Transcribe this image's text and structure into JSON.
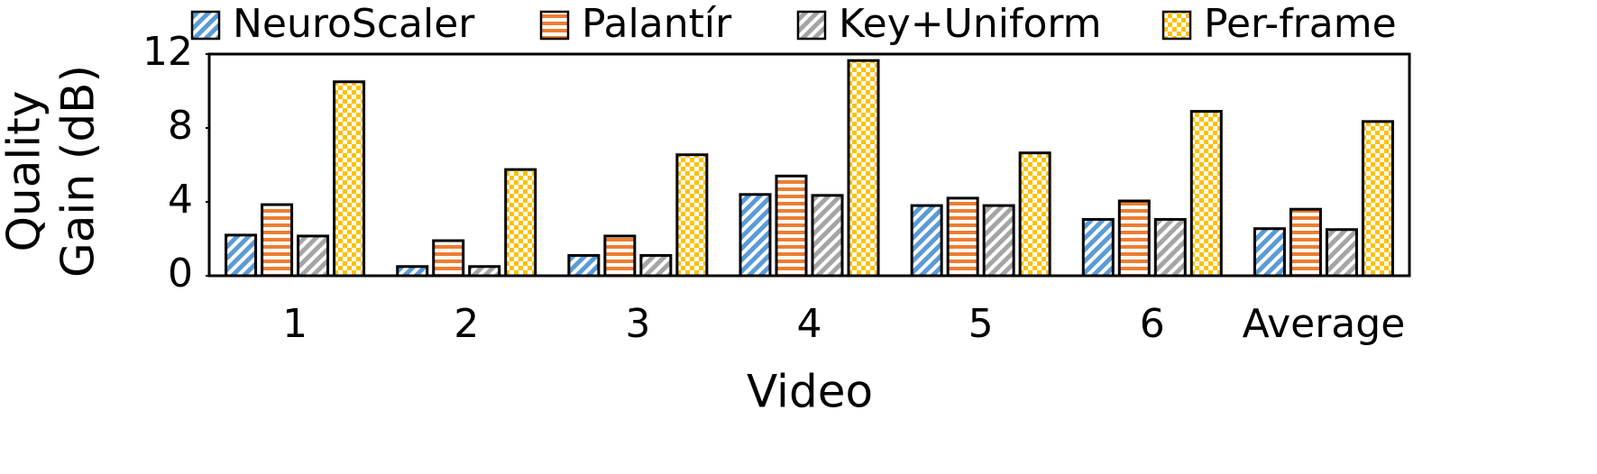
{
  "chart_data": {
    "type": "bar",
    "x_label": "Video",
    "y_label": [
      "Quality",
      "Gain (dB)"
    ],
    "categories": [
      "1",
      "2",
      "3",
      "4",
      "5",
      "6",
      "Average"
    ],
    "series": [
      {
        "name": "NeuroScaler",
        "color": "#5b9bd5",
        "pattern": "diagonal",
        "values": [
          2.2,
          0.5,
          1.1,
          4.4,
          3.8,
          3.05,
          2.55
        ]
      },
      {
        "name": "Palantír",
        "color": "#ed7d31",
        "pattern": "horizontal",
        "values": [
          3.85,
          1.9,
          2.15,
          5.4,
          4.2,
          4.05,
          3.6
        ]
      },
      {
        "name": "Key+Uniform",
        "color": "#a5a5a5",
        "pattern": "diagonal",
        "values": [
          2.15,
          0.5,
          1.1,
          4.35,
          3.8,
          3.05,
          2.5
        ]
      },
      {
        "name": "Per-frame",
        "color": "#ffc000",
        "pattern": "checker",
        "values": [
          10.5,
          5.75,
          6.55,
          11.65,
          6.65,
          8.9,
          8.35
        ]
      }
    ],
    "ylim": [
      0,
      12
    ],
    "yticks": [
      0,
      4,
      8,
      12
    ],
    "grid": false,
    "legend": "top"
  }
}
